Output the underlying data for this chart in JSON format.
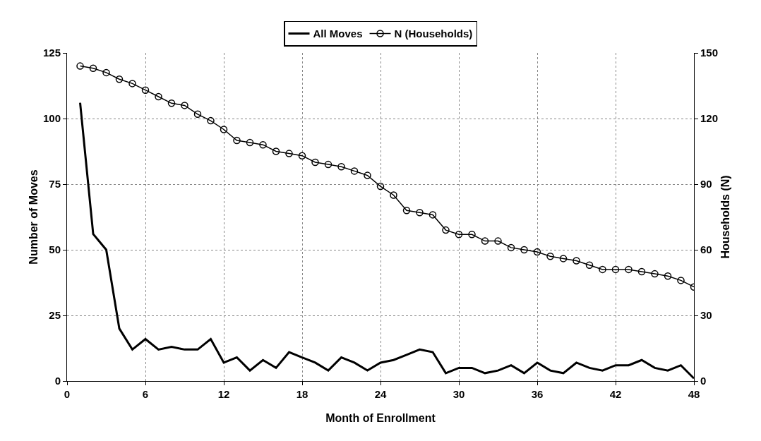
{
  "chart_data": {
    "type": "line",
    "xlabel": "Month of Enrollment",
    "ylabel": "Number of Moves",
    "y2label": "Households (N)",
    "x": [
      1,
      2,
      3,
      4,
      5,
      6,
      7,
      8,
      9,
      10,
      11,
      12,
      13,
      14,
      15,
      16,
      17,
      18,
      19,
      20,
      21,
      22,
      23,
      24,
      25,
      26,
      27,
      28,
      29,
      30,
      31,
      32,
      33,
      34,
      35,
      36,
      37,
      38,
      39,
      40,
      41,
      42,
      43,
      44,
      45,
      46,
      47,
      48
    ],
    "series": [
      {
        "name": "All Moves",
        "color": "#000000",
        "marker": "none",
        "values": [
          106,
          56,
          50,
          20,
          12,
          16,
          12,
          13,
          12,
          12,
          16,
          7,
          9,
          4,
          8,
          5,
          11,
          9,
          7,
          4,
          9,
          7,
          4,
          7,
          8,
          10,
          12,
          11,
          3,
          5,
          5,
          3,
          4,
          6,
          3,
          7,
          4,
          3,
          7,
          5,
          4,
          6,
          6,
          8,
          5,
          4,
          6,
          1
        ]
      },
      {
        "name": "N (Households)",
        "color": "#000000",
        "marker": "circle",
        "axis": "y2",
        "values": [
          144,
          143,
          141,
          138,
          136,
          133,
          130,
          127,
          126,
          122,
          119,
          115,
          110,
          109,
          108,
          105,
          104,
          103,
          100,
          99,
          98,
          96,
          94,
          89,
          85,
          78,
          77,
          76,
          69,
          67,
          67,
          64,
          64,
          61,
          60,
          59,
          57,
          56,
          55,
          53,
          51,
          51,
          51,
          50,
          49,
          48,
          46,
          43
        ]
      }
    ],
    "xlim": [
      0,
      48
    ],
    "xticks": [
      0,
      6,
      12,
      18,
      24,
      30,
      36,
      42,
      48
    ],
    "ylim": [
      0,
      125
    ],
    "yticks": [
      0,
      25,
      50,
      75,
      100,
      125
    ],
    "y2lim": [
      0,
      150
    ],
    "y2ticks": [
      0,
      30,
      60,
      90,
      120,
      150
    ],
    "grid": true,
    "legend": "top"
  }
}
